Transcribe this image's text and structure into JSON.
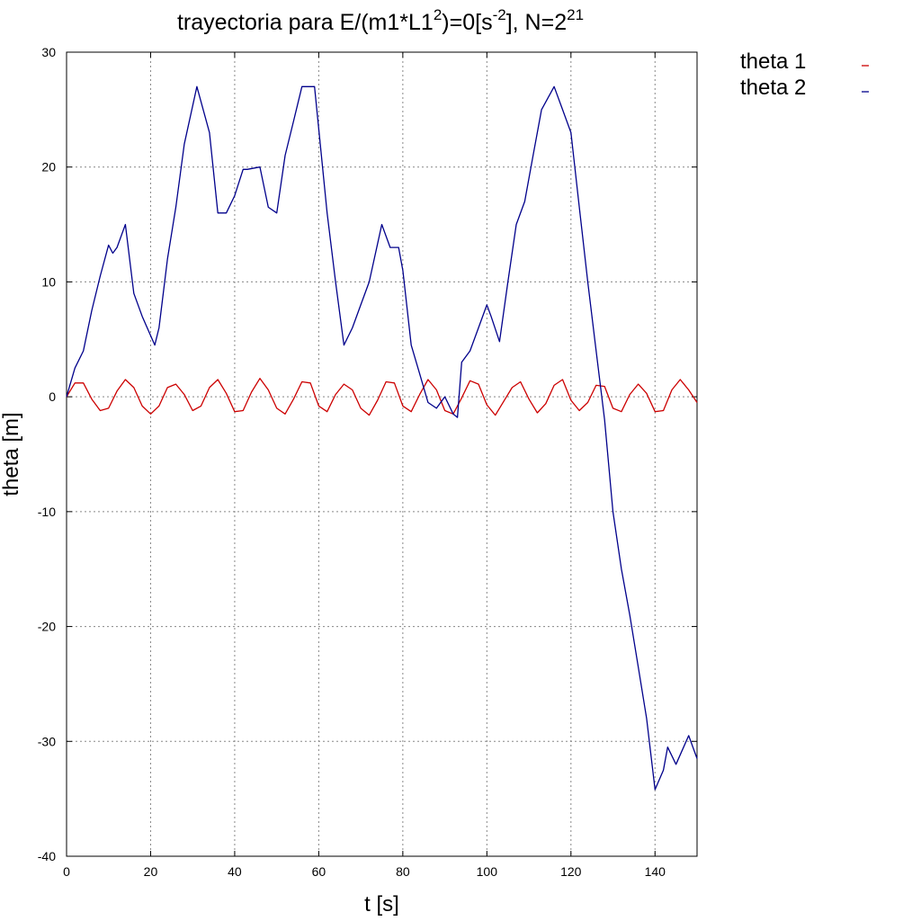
{
  "chart_data": {
    "type": "line",
    "title": {
      "main": "trayectoria para E/(m1*L1",
      "sup1": "2",
      "mid": ")=0[s",
      "sup2": "-2",
      "mid2": "], N=2",
      "sup3": "21"
    },
    "xlabel": "t [s]",
    "ylabel": "theta [m]",
    "xlim": [
      0,
      150
    ],
    "ylim": [
      -40,
      30
    ],
    "xticks": [
      0,
      20,
      40,
      60,
      80,
      100,
      120,
      140
    ],
    "yticks": [
      -40,
      -30,
      -20,
      -10,
      0,
      10,
      20,
      30
    ],
    "grid": true,
    "legend_position": "outside-top-right",
    "series": [
      {
        "name": "theta 1",
        "color": "#cc0000",
        "x": [
          0,
          2,
          4,
          6,
          8,
          10,
          12,
          14,
          16,
          18,
          20,
          22,
          24,
          26,
          28,
          30,
          32,
          34,
          36,
          38,
          40,
          42,
          44,
          46,
          48,
          50,
          52,
          54,
          56,
          58,
          60,
          62,
          64,
          66,
          68,
          70,
          72,
          74,
          76,
          78,
          80,
          82,
          84,
          86,
          88,
          90,
          92,
          94,
          96,
          98,
          100,
          102,
          104,
          106,
          108,
          110,
          112,
          114,
          116,
          118,
          120,
          122,
          124,
          126,
          128,
          130,
          132,
          134,
          136,
          138,
          140,
          142,
          144,
          146,
          148,
          150
        ],
        "y": [
          0,
          1.2,
          1.2,
          -0.2,
          -1.2,
          -1.0,
          0.5,
          1.5,
          0.8,
          -0.8,
          -1.5,
          -0.8,
          0.8,
          1.1,
          0.2,
          -1.2,
          -0.8,
          0.8,
          1.5,
          0.3,
          -1.3,
          -1.2,
          0.4,
          1.6,
          0.6,
          -1.0,
          -1.5,
          -0.2,
          1.3,
          1.2,
          -0.8,
          -1.3,
          0.2,
          1.1,
          0.6,
          -1.0,
          -1.6,
          -0.3,
          1.3,
          1.2,
          -0.8,
          -1.3,
          0.2,
          1.5,
          0.6,
          -1.2,
          -1.5,
          -0.1,
          1.4,
          1.1,
          -0.7,
          -1.6,
          -0.4,
          0.8,
          1.3,
          -0.2,
          -1.4,
          -0.6,
          1.0,
          1.5,
          -0.3,
          -1.2,
          -0.5,
          1.0,
          0.9,
          -1.0,
          -1.3,
          0.2,
          1.1,
          0.3,
          -1.3,
          -1.2,
          0.6,
          1.5,
          0.6,
          -0.5
        ]
      },
      {
        "name": "theta 2",
        "color": "#00008b",
        "x": [
          0,
          2,
          4,
          6,
          8,
          10,
          11,
          12,
          14,
          16,
          18,
          21,
          22,
          24,
          26,
          28,
          31,
          34,
          36,
          38,
          40,
          42,
          43,
          46,
          48,
          50,
          52,
          54,
          56,
          59,
          62,
          64,
          66,
          68,
          70,
          72,
          75,
          77,
          79,
          80,
          82,
          84,
          86,
          88,
          90,
          92,
          93,
          94,
          96,
          98,
          100,
          101,
          103,
          105,
          107,
          109,
          111,
          113,
          116,
          118,
          120,
          122,
          124,
          126,
          128,
          130,
          132,
          134,
          136,
          138,
          140,
          142,
          143,
          145,
          148,
          150
        ],
        "y": [
          0,
          2.5,
          4,
          7.5,
          10.5,
          13.2,
          12.5,
          13,
          15,
          9,
          7,
          4.5,
          6,
          12,
          16.5,
          22,
          27,
          23,
          16,
          16,
          17.5,
          19.8,
          19.8,
          20,
          16.5,
          16,
          21,
          24,
          27,
          27,
          16,
          10,
          4.5,
          6,
          8,
          10,
          15,
          13,
          13,
          11,
          4.5,
          2,
          -0.5,
          -1,
          0,
          -1.5,
          -1.8,
          3,
          4,
          6,
          8,
          7,
          4.8,
          10,
          15,
          17,
          21,
          25,
          27,
          25,
          23,
          16.5,
          10,
          4,
          -2,
          -10,
          -15,
          -19,
          -23.5,
          -28,
          -34.2,
          -32.5,
          -30.5,
          -32,
          -29.5,
          -31.5
        ]
      }
    ]
  }
}
